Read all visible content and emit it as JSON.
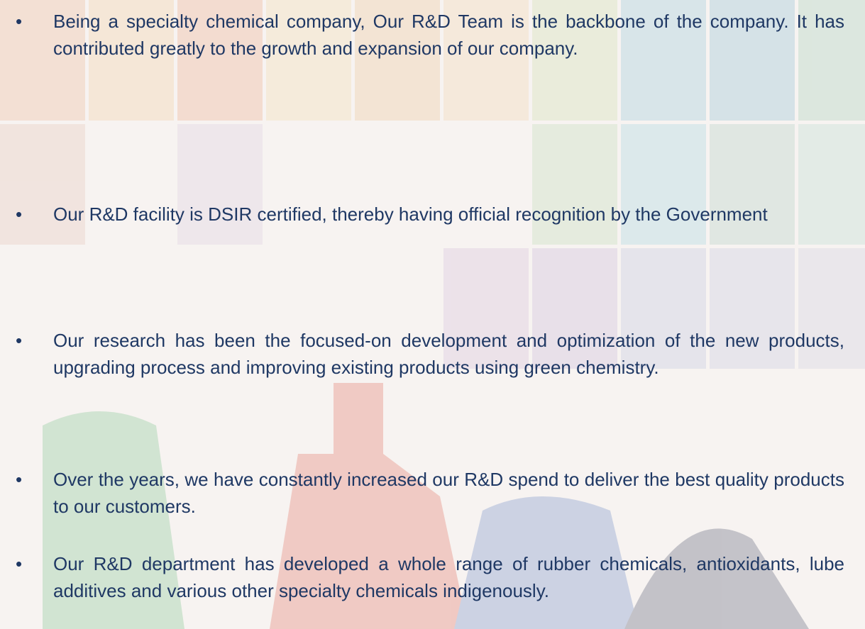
{
  "bullets": [
    "Being  a specialty chemical company, Our R&D Team is the backbone of the company. It has contributed greatly to the growth and expansion of our company.",
    "Our R&D facility is DSIR certified, thereby having official recognition by the Government",
    "Our research has been the focused-on development and optimization of the new products, upgrading process and improving existing products using green chemistry.",
    "Over the years, we have constantly increased our R&D spend to deliver the best quality products to our customers.",
    "Our R&D department has developed a whole range of rubber chemicals, antioxidants, lube additives and various other specialty chemicals indigenously."
  ]
}
